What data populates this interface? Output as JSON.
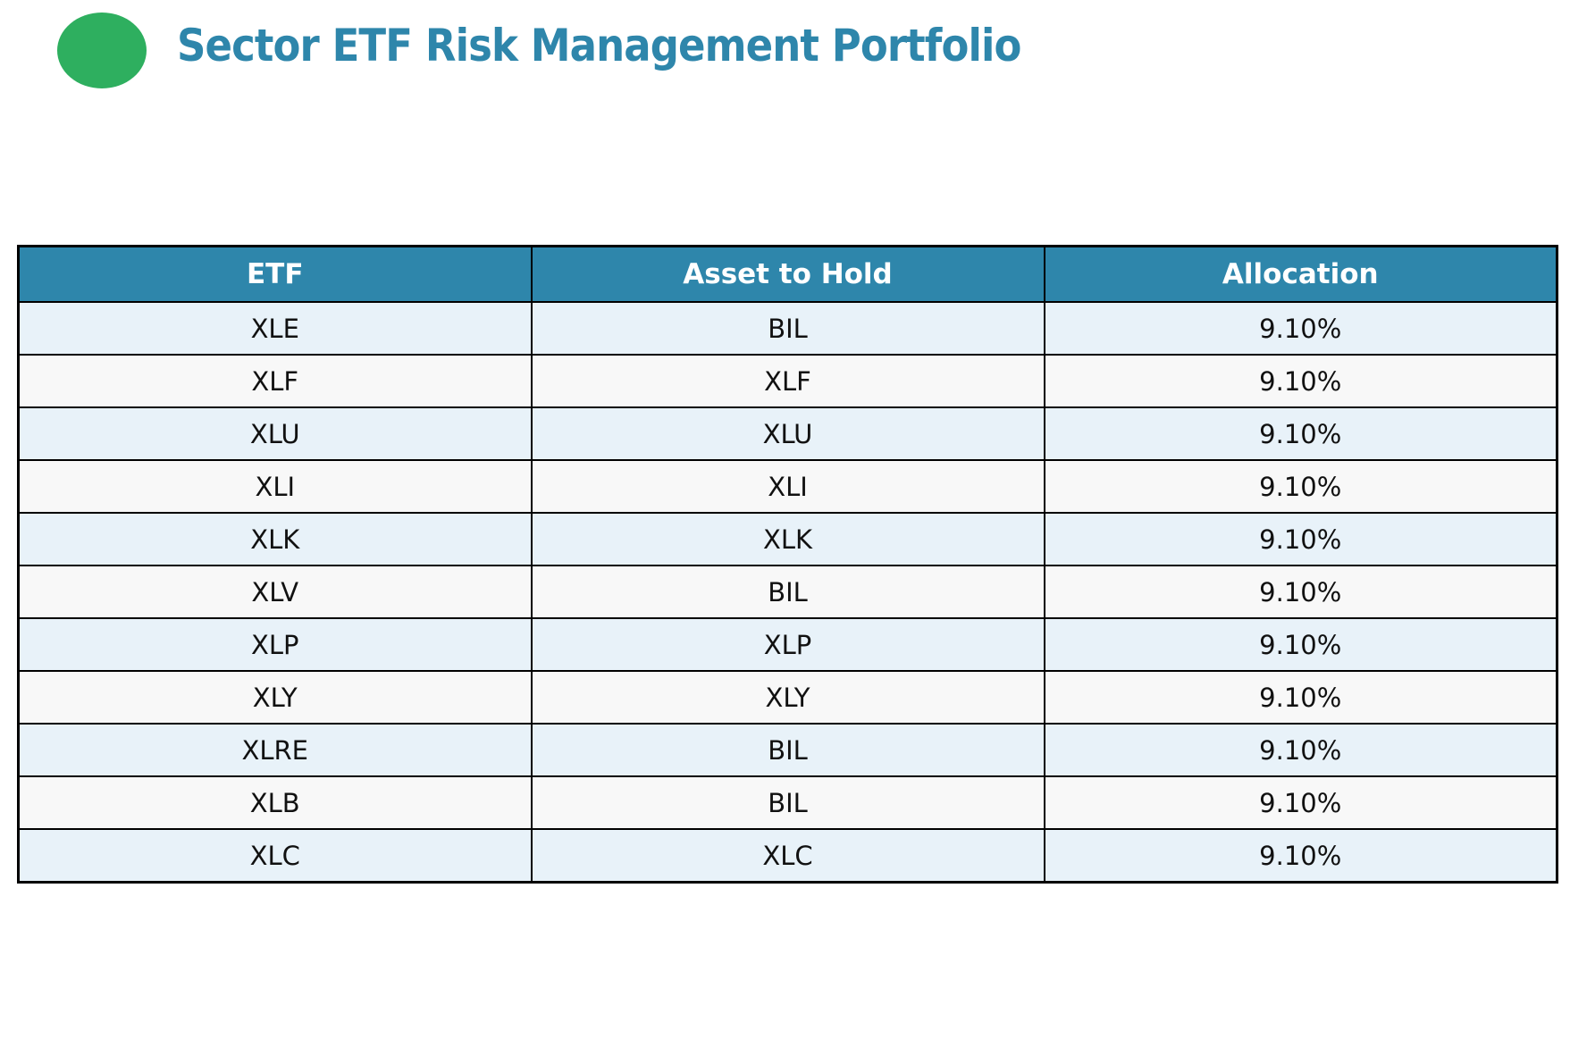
{
  "title": "Sector ETF Risk Management Portfolio",
  "icon": {
    "name": "green-circle",
    "color": "#2eaf5f"
  },
  "colors": {
    "accent_teal": "#2e86ab",
    "table_header_bg": "#2e86ab",
    "table_header_text": "#ffffff",
    "row_blue": "#e8f2f9",
    "row_white": "#f8f8f8",
    "border": "#000000",
    "circle_green": "#2eaf5f"
  },
  "chart_data": {
    "type": "table",
    "title": "Sector ETF Risk Management Portfolio",
    "columns": [
      "ETF",
      "Asset to Hold",
      "Allocation"
    ],
    "rows": [
      [
        "XLE",
        "BIL",
        "9.10%"
      ],
      [
        "XLF",
        "XLF",
        "9.10%"
      ],
      [
        "XLU",
        "XLU",
        "9.10%"
      ],
      [
        "XLI",
        "XLI",
        "9.10%"
      ],
      [
        "XLK",
        "XLK",
        "9.10%"
      ],
      [
        "XLV",
        "BIL",
        "9.10%"
      ],
      [
        "XLP",
        "XLP",
        "9.10%"
      ],
      [
        "XLY",
        "XLY",
        "9.10%"
      ],
      [
        "XLRE",
        "BIL",
        "9.10%"
      ],
      [
        "XLB",
        "BIL",
        "9.10%"
      ],
      [
        "XLC",
        "XLC",
        "9.10%"
      ]
    ]
  }
}
